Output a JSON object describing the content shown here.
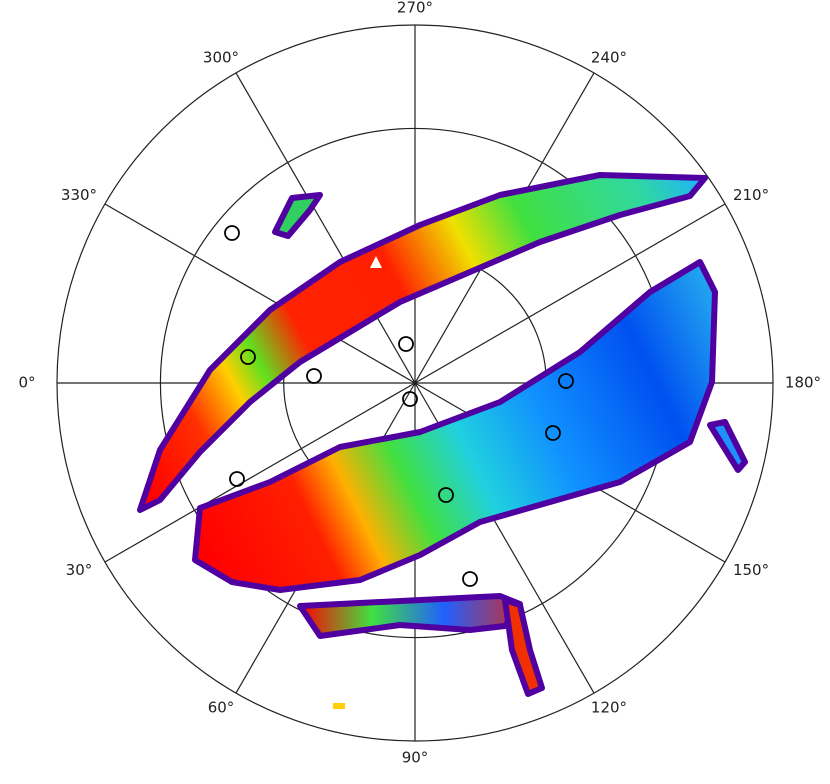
{
  "chart_data": {
    "type": "polar",
    "angle_ticks": [
      {
        "value": 0,
        "label": "0°"
      },
      {
        "value": 30,
        "label": "30°"
      },
      {
        "value": 60,
        "label": "60°"
      },
      {
        "value": 90,
        "label": "90°"
      },
      {
        "value": 120,
        "label": "120°"
      },
      {
        "value": 150,
        "label": "150°"
      },
      {
        "value": 180,
        "label": "180°"
      },
      {
        "value": 210,
        "label": "210°"
      },
      {
        "value": 240,
        "label": "240°"
      },
      {
        "value": 270,
        "label": "270°"
      },
      {
        "value": 300,
        "label": "300°"
      },
      {
        "value": 330,
        "label": "330°"
      }
    ],
    "rlim": [
      0,
      90
    ],
    "rticks": [
      33,
      64,
      90
    ]
  }
}
